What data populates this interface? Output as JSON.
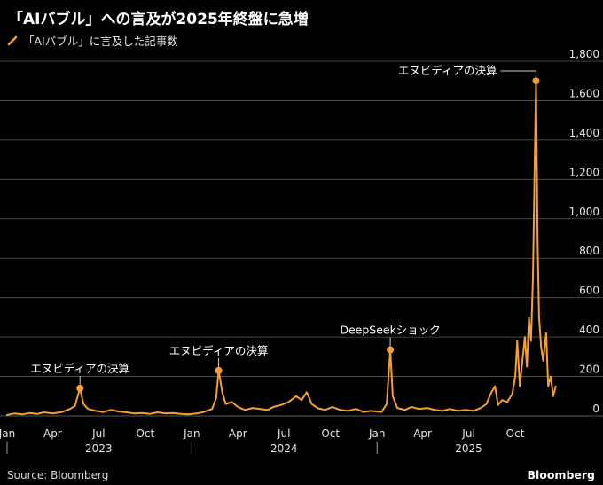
{
  "title": "「AIバブル」への言及が2025年終盤に急増",
  "legend": {
    "label": "「AIバブル」に言及した記事数"
  },
  "source": "Source: Bloomberg",
  "brand": "Bloomberg",
  "colors": {
    "series": "#F5A031",
    "grid": "#5a5a5a",
    "axis": "#9a9a9a",
    "text": "#e6e6e6"
  },
  "chart_data": {
    "type": "line",
    "series": [
      {
        "name": "「AIバブル」に言及した記事数",
        "color": "#F5A031",
        "points": [
          [
            "2023-01-01",
            5
          ],
          [
            "2023-01-15",
            12
          ],
          [
            "2023-02-01",
            8
          ],
          [
            "2023-02-15",
            15
          ],
          [
            "2023-03-01",
            10
          ],
          [
            "2023-03-15",
            18
          ],
          [
            "2023-04-01",
            12
          ],
          [
            "2023-04-20",
            20
          ],
          [
            "2023-05-05",
            35
          ],
          [
            "2023-05-15",
            50
          ],
          [
            "2023-05-25",
            140
          ],
          [
            "2023-06-01",
            60
          ],
          [
            "2023-06-10",
            35
          ],
          [
            "2023-06-25",
            25
          ],
          [
            "2023-07-10",
            20
          ],
          [
            "2023-07-25",
            30
          ],
          [
            "2023-08-10",
            22
          ],
          [
            "2023-08-25",
            18
          ],
          [
            "2023-09-10",
            12
          ],
          [
            "2023-09-25",
            15
          ],
          [
            "2023-10-10",
            10
          ],
          [
            "2023-10-25",
            18
          ],
          [
            "2023-11-10",
            12
          ],
          [
            "2023-11-25",
            15
          ],
          [
            "2023-12-10",
            10
          ],
          [
            "2023-12-25",
            8
          ],
          [
            "2024-01-10",
            12
          ],
          [
            "2024-01-25",
            20
          ],
          [
            "2024-02-10",
            35
          ],
          [
            "2024-02-18",
            90
          ],
          [
            "2024-02-23",
            230
          ],
          [
            "2024-03-01",
            120
          ],
          [
            "2024-03-08",
            60
          ],
          [
            "2024-03-20",
            70
          ],
          [
            "2024-04-01",
            45
          ],
          [
            "2024-04-15",
            30
          ],
          [
            "2024-04-30",
            40
          ],
          [
            "2024-05-15",
            35
          ],
          [
            "2024-05-30",
            30
          ],
          [
            "2024-06-10",
            45
          ],
          [
            "2024-06-25",
            55
          ],
          [
            "2024-07-10",
            70
          ],
          [
            "2024-07-25",
            100
          ],
          [
            "2024-08-05",
            80
          ],
          [
            "2024-08-15",
            120
          ],
          [
            "2024-08-25",
            60
          ],
          [
            "2024-09-05",
            40
          ],
          [
            "2024-09-20",
            30
          ],
          [
            "2024-10-05",
            45
          ],
          [
            "2024-10-20",
            30
          ],
          [
            "2024-11-05",
            25
          ],
          [
            "2024-11-20",
            35
          ],
          [
            "2024-12-05",
            20
          ],
          [
            "2024-12-20",
            25
          ],
          [
            "2025-01-10",
            20
          ],
          [
            "2025-01-20",
            60
          ],
          [
            "2025-01-27",
            335
          ],
          [
            "2025-02-01",
            100
          ],
          [
            "2025-02-10",
            40
          ],
          [
            "2025-02-25",
            30
          ],
          [
            "2025-03-10",
            45
          ],
          [
            "2025-03-25",
            35
          ],
          [
            "2025-04-10",
            40
          ],
          [
            "2025-04-25",
            30
          ],
          [
            "2025-05-10",
            25
          ],
          [
            "2025-05-25",
            35
          ],
          [
            "2025-06-10",
            25
          ],
          [
            "2025-06-25",
            30
          ],
          [
            "2025-07-10",
            25
          ],
          [
            "2025-07-25",
            40
          ],
          [
            "2025-08-05",
            60
          ],
          [
            "2025-08-15",
            120
          ],
          [
            "2025-08-22",
            150
          ],
          [
            "2025-08-28",
            55
          ],
          [
            "2025-09-05",
            80
          ],
          [
            "2025-09-15",
            70
          ],
          [
            "2025-09-25",
            110
          ],
          [
            "2025-10-01",
            200
          ],
          [
            "2025-10-05",
            380
          ],
          [
            "2025-10-10",
            150
          ],
          [
            "2025-10-15",
            280
          ],
          [
            "2025-10-20",
            400
          ],
          [
            "2025-10-24",
            250
          ],
          [
            "2025-10-28",
            500
          ],
          [
            "2025-11-01",
            380
          ],
          [
            "2025-11-05",
            700
          ],
          [
            "2025-11-08",
            1200
          ],
          [
            "2025-11-11",
            1700
          ],
          [
            "2025-11-14",
            900
          ],
          [
            "2025-11-17",
            500
          ],
          [
            "2025-11-21",
            350
          ],
          [
            "2025-11-25",
            280
          ],
          [
            "2025-12-01",
            420
          ],
          [
            "2025-12-05",
            150
          ],
          [
            "2025-12-10",
            200
          ],
          [
            "2025-12-15",
            100
          ],
          [
            "2025-12-20",
            150
          ]
        ]
      }
    ],
    "annotations": [
      {
        "label": "エヌビディアの決算",
        "date": "2023-05-25",
        "value": 140
      },
      {
        "label": "エヌビディアの決算",
        "date": "2024-02-23",
        "value": 230
      },
      {
        "label": "DeepSeekショック",
        "date": "2025-01-27",
        "value": 335
      },
      {
        "label": "エヌビディアの決算",
        "date": "2025-11-11",
        "value": 1700
      }
    ],
    "x_ticks": [
      {
        "label": "Jan",
        "date": "2023-01-01"
      },
      {
        "label": "Apr",
        "date": "2023-04-01"
      },
      {
        "label": "Jul",
        "date": "2023-07-01"
      },
      {
        "label": "Oct",
        "date": "2023-10-01"
      },
      {
        "label": "Jan",
        "date": "2024-01-01"
      },
      {
        "label": "Apr",
        "date": "2024-04-01"
      },
      {
        "label": "Jul",
        "date": "2024-07-01"
      },
      {
        "label": "Oct",
        "date": "2024-10-01"
      },
      {
        "label": "Jan",
        "date": "2025-01-01"
      },
      {
        "label": "Apr",
        "date": "2025-04-01"
      },
      {
        "label": "Jul",
        "date": "2025-07-01"
      },
      {
        "label": "Oct",
        "date": "2025-10-01"
      }
    ],
    "year_labels": [
      {
        "label": "2023",
        "date": "2023-07-01"
      },
      {
        "label": "2024",
        "date": "2024-07-01"
      },
      {
        "label": "2025",
        "date": "2025-07-01"
      }
    ],
    "year_dividers": [
      "2023-01-01",
      "2024-01-01",
      "2025-01-01"
    ],
    "y_ticks": [
      0,
      200,
      400,
      600,
      800,
      "1,000",
      "1,200",
      "1,400",
      "1,600",
      "1,800"
    ],
    "xlim": [
      "2023-01-01",
      "2025-12-31"
    ],
    "ylim": [
      0,
      1800
    ],
    "grid": true,
    "y_axis_side": "right",
    "legend_position": "top-left"
  }
}
